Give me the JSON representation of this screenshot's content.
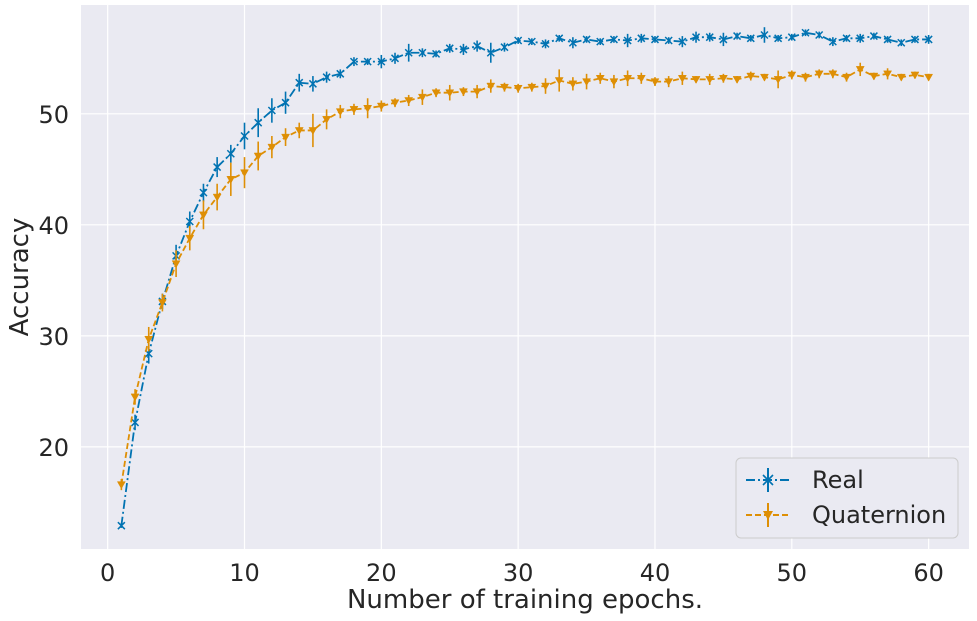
{
  "chart_data": {
    "type": "line",
    "title": "",
    "xlabel": "Number of training epochs.",
    "ylabel": "Accuracy",
    "xlim": [
      -1.95,
      62.95
    ],
    "ylim": [
      10.8,
      59.8
    ],
    "xticks": [
      0,
      10,
      20,
      30,
      40,
      50,
      60
    ],
    "yticks": [
      20,
      30,
      40,
      50
    ],
    "grid": true,
    "legend_position": "lower-right",
    "x": [
      1,
      2,
      3,
      4,
      5,
      6,
      7,
      8,
      9,
      10,
      11,
      12,
      13,
      14,
      15,
      16,
      17,
      18,
      19,
      20,
      21,
      22,
      23,
      24,
      25,
      26,
      27,
      28,
      29,
      30,
      31,
      32,
      33,
      34,
      35,
      36,
      37,
      38,
      39,
      40,
      41,
      42,
      43,
      44,
      45,
      46,
      47,
      48,
      49,
      50,
      51,
      52,
      53,
      54,
      55,
      56,
      57,
      58,
      59,
      60
    ],
    "series": [
      {
        "name": "Real",
        "color": "#0173b2",
        "marker": "x",
        "linestyle": "dashdot",
        "values": [
          12.9,
          22.2,
          28.4,
          33.1,
          37.2,
          40.3,
          42.9,
          45.2,
          46.4,
          48.0,
          49.2,
          50.3,
          51.0,
          52.8,
          52.7,
          53.3,
          53.6,
          54.7,
          54.7,
          54.7,
          55.0,
          55.5,
          55.5,
          55.4,
          55.9,
          55.8,
          56.1,
          55.5,
          56.0,
          56.6,
          56.5,
          56.3,
          56.8,
          56.4,
          56.7,
          56.5,
          56.7,
          56.6,
          56.8,
          56.7,
          56.6,
          56.5,
          56.9,
          56.9,
          56.7,
          57.0,
          56.8,
          57.1,
          56.8,
          56.9,
          57.3,
          57.1,
          56.5,
          56.8,
          56.8,
          57.0,
          56.7,
          56.4,
          56.7,
          56.7
        ],
        "errors": [
          0.2,
          0.7,
          0.9,
          0.7,
          1.0,
          0.9,
          0.8,
          0.9,
          0.8,
          1.2,
          1.3,
          1.1,
          1.0,
          0.8,
          0.7,
          0.5,
          0.4,
          0.4,
          0.3,
          0.6,
          0.5,
          0.8,
          0.4,
          0.3,
          0.4,
          0.5,
          0.5,
          0.9,
          0.4,
          0.3,
          0.3,
          0.4,
          0.3,
          0.5,
          0.3,
          0.3,
          0.3,
          0.6,
          0.4,
          0.3,
          0.3,
          0.5,
          0.5,
          0.4,
          0.6,
          0.3,
          0.3,
          0.7,
          0.3,
          0.3,
          0.3,
          0.3,
          0.4,
          0.3,
          0.4,
          0.3,
          0.3,
          0.3,
          0.3,
          0.4
        ]
      },
      {
        "name": "Quaternion",
        "color": "#de8f05",
        "marker": "v",
        "linestyle": "dashed",
        "values": [
          16.6,
          24.5,
          29.7,
          33.0,
          36.5,
          38.8,
          40.9,
          42.5,
          44.1,
          44.7,
          46.2,
          47.0,
          47.9,
          48.5,
          48.5,
          49.5,
          50.2,
          50.4,
          50.5,
          50.7,
          51.0,
          51.2,
          51.5,
          51.9,
          51.9,
          52.0,
          52.0,
          52.5,
          52.4,
          52.3,
          52.4,
          52.5,
          53.0,
          52.7,
          52.9,
          53.2,
          52.9,
          53.2,
          53.2,
          52.9,
          52.9,
          53.2,
          53.1,
          53.1,
          53.2,
          53.1,
          53.4,
          53.3,
          53.1,
          53.5,
          53.3,
          53.6,
          53.6,
          53.3,
          54.0,
          53.4,
          53.6,
          53.3,
          53.5,
          53.3
        ],
        "errors": [
          0.5,
          0.7,
          1.1,
          0.8,
          1.2,
          1.1,
          1.3,
          1.2,
          1.5,
          1.4,
          1.3,
          1.0,
          0.8,
          0.7,
          1.5,
          0.9,
          0.6,
          0.5,
          0.9,
          0.5,
          0.4,
          0.5,
          0.7,
          0.4,
          0.7,
          0.4,
          0.6,
          0.6,
          0.4,
          0.4,
          0.4,
          0.7,
          1.0,
          0.6,
          0.7,
          0.5,
          0.6,
          0.7,
          0.5,
          0.4,
          0.5,
          0.6,
          0.3,
          0.5,
          0.4,
          0.3,
          0.4,
          0.3,
          0.8,
          0.4,
          0.4,
          0.4,
          0.4,
          0.4,
          0.6,
          0.3,
          0.5,
          0.3,
          0.3,
          0.3
        ]
      }
    ]
  }
}
